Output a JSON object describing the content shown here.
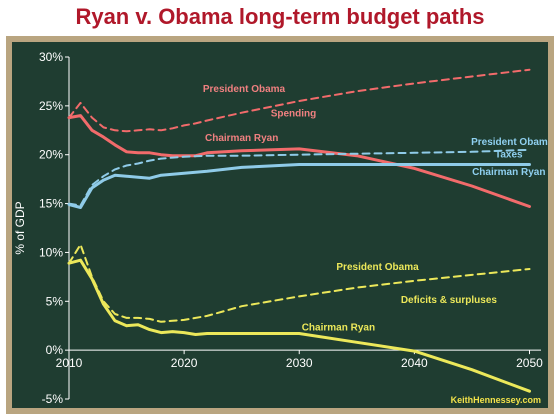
{
  "title": "Ryan v. Obama long-term budget paths",
  "source_credit": "KeithHennessey.com",
  "colors": {
    "background": "#1f3d31",
    "frame": "#b9a580",
    "title": "#b0182a",
    "spending": "#f26b6b",
    "taxes": "#8fcbe8",
    "deficits": "#ece85a",
    "spending_label": "#f08080",
    "taxes_label": "#8fd0f0",
    "deficits_label": "#ece85a"
  },
  "chart_data": {
    "type": "line",
    "title": "Ryan v. Obama long-term budget paths",
    "xlabel": "",
    "ylabel": "% of GDP",
    "xlim": [
      2010,
      2051
    ],
    "ylim": [
      -5,
      30
    ],
    "xticks": [
      2010,
      2020,
      2030,
      2040,
      2050
    ],
    "yticks": [
      -5,
      0,
      5,
      10,
      15,
      20,
      25,
      30
    ],
    "xtick_labels": [
      "2010",
      "2020",
      "2030",
      "2040",
      "2050"
    ],
    "ytick_labels": [
      "-5%",
      "0%",
      "5%",
      "10%",
      "15%",
      "20%",
      "25%",
      "30%"
    ],
    "grid": false,
    "legend": "none",
    "series": [
      {
        "key": "obama_spending",
        "group": "spending",
        "style": "dashed",
        "x": [
          2010,
          2011,
          2012,
          2013,
          2014,
          2015,
          2016,
          2017,
          2018,
          2019,
          2020,
          2021,
          2022,
          2025,
          2030,
          2035,
          2040,
          2045,
          2050
        ],
        "y": [
          23.8,
          25.3,
          23.8,
          22.8,
          22.5,
          22.4,
          22.5,
          22.6,
          22.5,
          22.7,
          23.0,
          23.2,
          23.5,
          24.3,
          25.5,
          26.5,
          27.3,
          28.0,
          28.7
        ]
      },
      {
        "key": "ryan_spending",
        "group": "spending",
        "style": "solid",
        "x": [
          2010,
          2011,
          2012,
          2013,
          2014,
          2015,
          2016,
          2017,
          2018,
          2019,
          2020,
          2021,
          2022,
          2025,
          2030,
          2035,
          2040,
          2045,
          2050
        ],
        "y": [
          23.8,
          24.0,
          22.5,
          21.8,
          21.0,
          20.3,
          20.2,
          20.2,
          20.0,
          19.9,
          19.9,
          19.9,
          20.2,
          20.4,
          20.6,
          19.9,
          18.6,
          16.8,
          14.7
        ]
      },
      {
        "key": "obama_taxes",
        "group": "taxes",
        "style": "dashed",
        "x": [
          2010,
          2011,
          2012,
          2013,
          2014,
          2015,
          2016,
          2017,
          2018,
          2019,
          2020,
          2022,
          2025,
          2030,
          2035,
          2040,
          2045,
          2050
        ],
        "y": [
          15.0,
          14.8,
          16.9,
          17.8,
          18.5,
          18.9,
          19.1,
          19.4,
          19.6,
          19.7,
          19.8,
          19.9,
          19.9,
          20.0,
          20.1,
          20.2,
          20.3,
          20.5
        ]
      },
      {
        "key": "ryan_taxes",
        "group": "taxes",
        "style": "solid",
        "x": [
          2010,
          2011,
          2012,
          2013,
          2014,
          2015,
          2016,
          2017,
          2018,
          2019,
          2020,
          2022,
          2025,
          2030,
          2035,
          2040,
          2045,
          2050
        ],
        "y": [
          14.9,
          14.6,
          16.6,
          17.4,
          17.9,
          17.8,
          17.7,
          17.6,
          17.9,
          18.0,
          18.1,
          18.3,
          18.7,
          19.0,
          19.0,
          19.0,
          19.0,
          19.0
        ]
      },
      {
        "key": "obama_deficits",
        "group": "deficits",
        "style": "dashed",
        "x": [
          2010,
          2011,
          2012,
          2013,
          2014,
          2015,
          2016,
          2017,
          2018,
          2019,
          2020,
          2022,
          2025,
          2030,
          2035,
          2040,
          2045,
          2050
        ],
        "y": [
          8.9,
          10.8,
          7.5,
          5.0,
          3.7,
          3.3,
          3.3,
          3.2,
          2.9,
          3.0,
          3.1,
          3.5,
          4.5,
          5.5,
          6.4,
          7.1,
          7.7,
          8.3
        ]
      },
      {
        "key": "ryan_deficits",
        "group": "deficits",
        "style": "solid",
        "x": [
          2010,
          2011,
          2012,
          2013,
          2014,
          2015,
          2016,
          2017,
          2018,
          2019,
          2020,
          2021,
          2022,
          2025,
          2030,
          2035,
          2040,
          2045,
          2050
        ],
        "y": [
          8.9,
          9.2,
          7.3,
          4.7,
          3.0,
          2.5,
          2.6,
          2.1,
          1.8,
          1.9,
          1.8,
          1.6,
          1.7,
          1.7,
          1.7,
          0.8,
          -0.1,
          -2.0,
          -4.2
        ]
      }
    ],
    "annotations": [
      {
        "key": "spending_obama",
        "text": "President Obama",
        "x": 2025.2,
        "y": 26.4,
        "color_key": "spending_label"
      },
      {
        "key": "spending_group",
        "text": "Spending",
        "x": 2029.5,
        "y": 23.9,
        "color_key": "spending_label"
      },
      {
        "key": "spending_ryan",
        "text": "Chairman Ryan",
        "x": 2025.0,
        "y": 21.4,
        "color_key": "spending_label"
      },
      {
        "key": "taxes_obama",
        "text": "President Obama",
        "x": 2048.5,
        "y": 21.0,
        "color_key": "taxes_label"
      },
      {
        "key": "taxes_group",
        "text": "Taxes",
        "x": 2048.2,
        "y": 19.7,
        "color_key": "taxes_label"
      },
      {
        "key": "taxes_ryan",
        "text": "Chairman Ryan",
        "x": 2048.2,
        "y": 17.9,
        "color_key": "taxes_label"
      },
      {
        "key": "deficits_obama",
        "text": "President Obama",
        "x": 2036.8,
        "y": 8.2,
        "color_key": "deficits_label"
      },
      {
        "key": "deficits_group",
        "text": "Deficits & surpluses",
        "x": 2043.0,
        "y": 4.8,
        "color_key": "deficits_label"
      },
      {
        "key": "deficits_ryan",
        "text": "Chairman Ryan",
        "x": 2033.4,
        "y": 2.0,
        "color_key": "deficits_label"
      }
    ]
  }
}
